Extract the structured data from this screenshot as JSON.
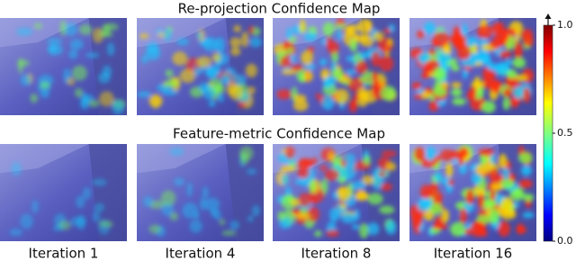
{
  "figure": {
    "row_titles": [
      "Re-projection Confidence Map",
      "Feature-metric Confidence Map"
    ],
    "column_labels": [
      "Iteration 1",
      "Iteration 4",
      "Iteration 8",
      "Iteration 16"
    ],
    "colorbar": {
      "lim": [
        0,
        1
      ],
      "ticks": [
        {
          "value": 0,
          "label": "0.0"
        },
        {
          "value": 0.5,
          "label": "0.5"
        },
        {
          "value": 1,
          "label": "1.0"
        }
      ]
    }
  }
}
